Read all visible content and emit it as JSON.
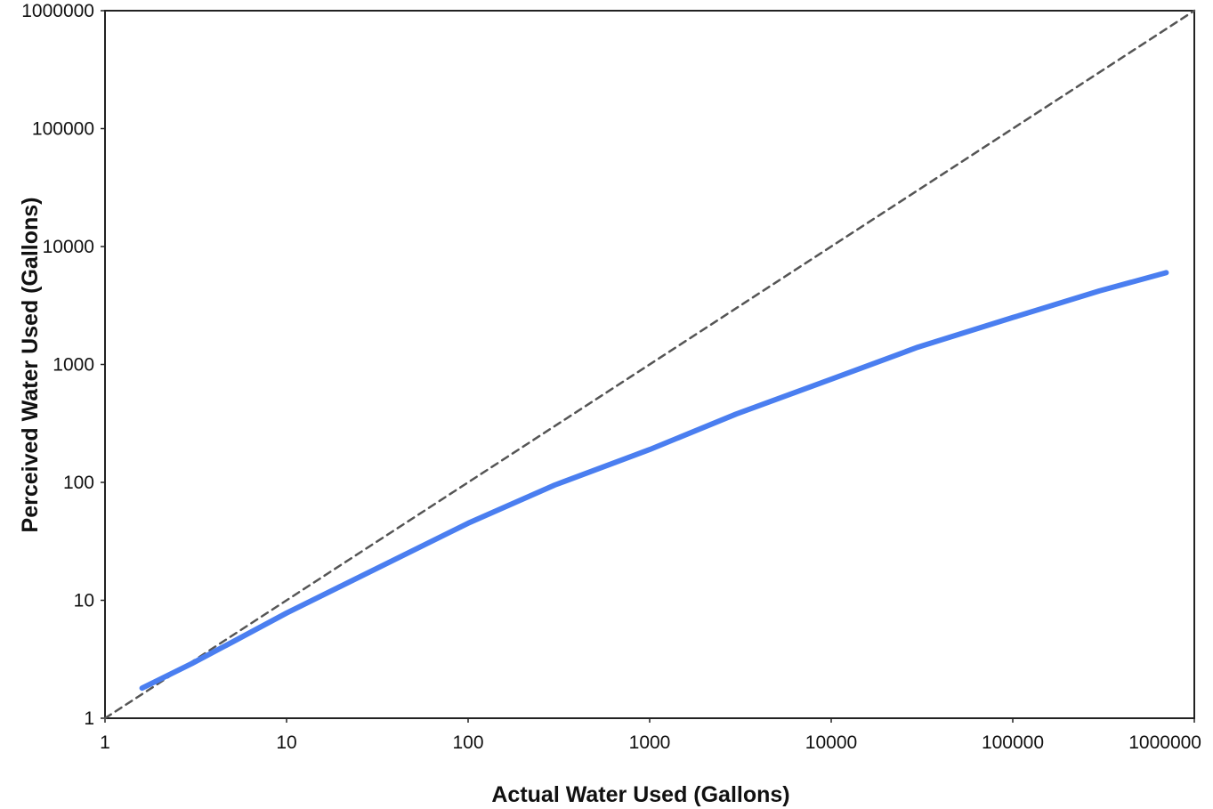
{
  "chart_data": {
    "type": "line",
    "xlabel": "Actual Water Used (Gallons)",
    "ylabel": "Perceived Water Used (Gallons)",
    "x_scale": "log",
    "y_scale": "log",
    "xlim": [
      1,
      1000000
    ],
    "ylim": [
      1,
      1000000
    ],
    "x_ticks": [
      "1",
      "10",
      "100",
      "1000",
      "10000",
      "100000",
      "1000000"
    ],
    "y_ticks": [
      "1",
      "10",
      "100",
      "1000",
      "10000",
      "100000",
      "1000000"
    ],
    "grid": false,
    "series": [
      {
        "color": "#4a7ef0",
        "style": "solid",
        "x": [
          1.6,
          3,
          5,
          10,
          30,
          100,
          300,
          1000,
          3000,
          10000,
          30000,
          100000,
          300000,
          700000
        ],
        "y": [
          1.8,
          2.9,
          4.4,
          7.8,
          18,
          45,
          95,
          190,
          380,
          750,
          1400,
          2500,
          4200,
          6000
        ]
      },
      {
        "color": "#555555",
        "style": "dashed",
        "x": [
          1,
          1000000
        ],
        "y": [
          1,
          1000000
        ]
      }
    ]
  }
}
